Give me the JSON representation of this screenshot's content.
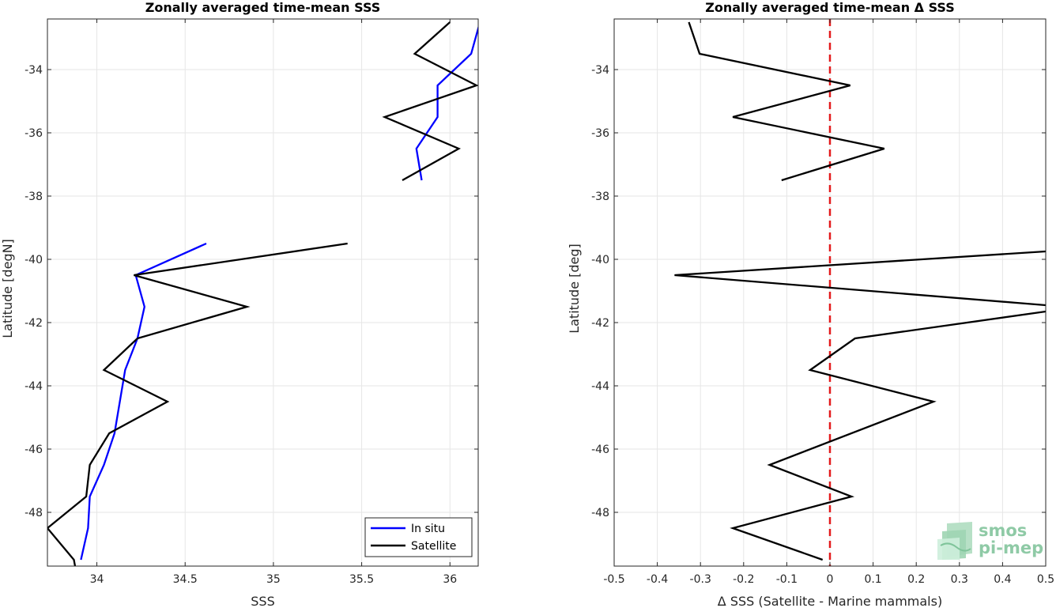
{
  "chart_data": [
    {
      "type": "line",
      "title": "Zonally averaged time-mean SSS",
      "xlabel": "SSS",
      "ylabel": "Latitude [degN]",
      "xlim": [
        33.72,
        36.16
      ],
      "ylim": [
        -49.7,
        -32.4
      ],
      "xticks": [
        34,
        34.5,
        35,
        35.5,
        36
      ],
      "xtick_labels": [
        "34",
        "34.5",
        "35",
        "35.5",
        "36"
      ],
      "yticks": [
        -48,
        -46,
        -44,
        -42,
        -40,
        -38,
        -36,
        -34
      ],
      "ytick_labels": [
        "-48",
        "-46",
        "-44",
        "-42",
        "-40",
        "-38",
        "-36",
        "-34"
      ],
      "grid": true,
      "legend": "bottom-right",
      "series": [
        {
          "name": "In situ",
          "color": "#0000ff",
          "segments": [
            {
              "x": [
                36.17,
                36.12,
                35.93,
                35.93,
                35.81,
                35.84
              ],
              "y": [
                -32.5,
                -33.5,
                -34.5,
                -35.5,
                -36.5,
                -37.5
              ]
            },
            {
              "x": [
                34.62,
                34.22,
                34.27,
                34.23,
                34.16,
                34.13,
                34.1,
                34.04,
                33.96,
                33.95,
                33.95,
                33.91
              ],
              "y": [
                -39.5,
                -40.5,
                -41.5,
                -42.5,
                -43.5,
                -44.5,
                -45.5,
                -46.5,
                -47.5,
                -48.5,
                -48.5,
                -49.5
              ]
            }
          ]
        },
        {
          "name": "Satellite",
          "color": "#000000",
          "segments": [
            {
              "x": [
                36.0,
                35.8,
                36.15,
                35.63,
                36.05,
                35.73
              ],
              "y": [
                -32.5,
                -33.5,
                -34.5,
                -35.5,
                -36.5,
                -37.5
              ]
            },
            {
              "x": [
                35.42,
                34.21,
                34.85,
                34.23,
                34.04,
                34.4,
                34.07,
                33.96,
                33.94,
                33.72,
                33.87,
                33.88
              ],
              "y": [
                -39.5,
                -40.5,
                -41.5,
                -42.5,
                -43.5,
                -44.5,
                -45.5,
                -46.5,
                -47.5,
                -48.5,
                -49.5,
                -49.8
              ]
            }
          ]
        }
      ]
    },
    {
      "type": "line",
      "title": "Zonally averaged time-mean Δ SSS",
      "xlabel": "Δ SSS (Satellite - Marine mammals)",
      "ylabel": "Latitude [deg]",
      "xlim": [
        -0.5,
        0.5
      ],
      "ylim": [
        -49.7,
        -32.4
      ],
      "xticks": [
        -0.5,
        -0.4,
        -0.3,
        -0.2,
        -0.1,
        0,
        0.1,
        0.2,
        0.3,
        0.4,
        0.5
      ],
      "xtick_labels": [
        "-0.5",
        "-0.4",
        "-0.3",
        "-0.2",
        "-0.1",
        "0",
        "0.1",
        "0.2",
        "0.3",
        "0.4",
        "0.5"
      ],
      "yticks": [
        -48,
        -46,
        -44,
        -42,
        -40,
        -38,
        -36,
        -34
      ],
      "ytick_labels": [
        "-48",
        "-46",
        "-44",
        "-42",
        "-40",
        "-38",
        "-36",
        "-34"
      ],
      "grid": true,
      "reference_line": {
        "x": 0,
        "color": "#e31a1c",
        "style": "dashed"
      },
      "series": [
        {
          "color": "#000000",
          "segments": [
            {
              "x": [
                -0.327,
                -0.302,
                0.047,
                -0.225,
                0.126,
                -0.112
              ],
              "y": [
                -32.5,
                -33.5,
                -34.5,
                -35.5,
                -36.5,
                -37.5
              ]
            },
            {
              "x": [
                0.5,
                -0.36,
                0.5
              ],
              "y": [
                -39.75,
                -40.5,
                -41.45
              ]
            },
            {
              "x": [
                0.5,
                0.058,
                -0.046,
                0.24,
                -0.14,
                0.05,
                -0.225,
                -0.017
              ],
              "y": [
                -41.65,
                -42.5,
                -43.5,
                -44.5,
                -46.5,
                -47.5,
                -48.5,
                -49.5
              ]
            }
          ]
        }
      ]
    }
  ],
  "logo": {
    "line1": "smos",
    "line2": "pi-mep"
  }
}
